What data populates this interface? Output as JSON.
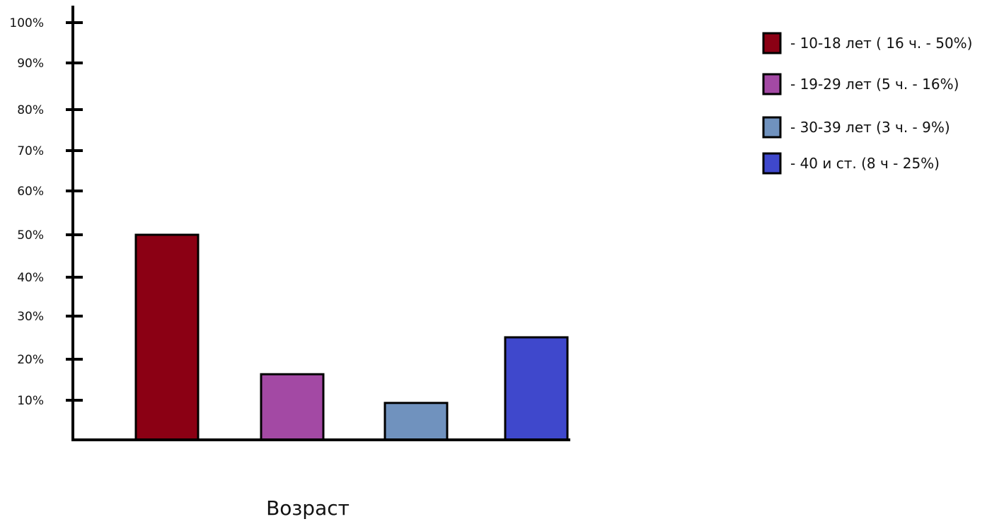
{
  "chart_data": {
    "type": "bar",
    "categories": [
      "10-18 лет",
      "19-29 лет",
      "30-39 лет",
      "40 и ст."
    ],
    "values": [
      50,
      16,
      9,
      25
    ],
    "colors": [
      "#8b0014",
      "#a349a4",
      "#7092be",
      "#3f48cc"
    ],
    "xlabel": "Возраст",
    "ylabel": "",
    "ylim": [
      0,
      100
    ],
    "yticks": [
      "10%",
      "20%",
      "30%",
      "40%",
      "50%",
      "60%",
      "70%",
      "80%",
      "90%",
      "100%"
    ],
    "legend": {
      "placement": "top-right",
      "entries": [
        "- 10-18 лет ( 16 ч. - 50%)",
        "- 19-29 лет (5 ч. - 16%)",
        "- 30-39 лет (3 ч. - 9%)",
        "- 40 и ст. (8 ч - 25%)"
      ]
    },
    "grid": false
  }
}
